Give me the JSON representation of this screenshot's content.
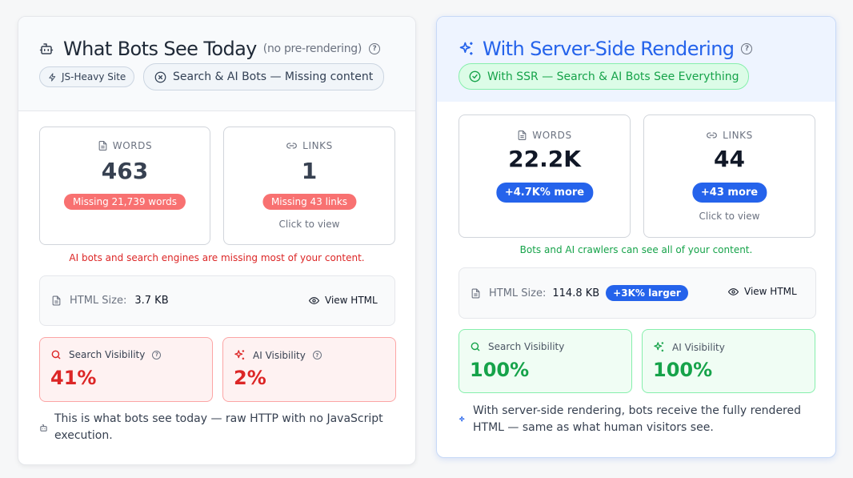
{
  "left": {
    "title": "What Bots See Today",
    "subtitle": "(no pre-rendering)",
    "chip1": "JS-Heavy Site",
    "chip2": "Search & AI Bots — Missing content",
    "words": {
      "label": "WORDS",
      "value": "463",
      "badge": "Missing 21,739 words"
    },
    "links": {
      "label": "LINKS",
      "value": "1",
      "badge": "Missing 43 links",
      "click": "Click to view"
    },
    "note": "AI bots and search engines are missing most of your content.",
    "html_size": {
      "label": "HTML Size:",
      "value": "3.7 KB",
      "button": "View HTML"
    },
    "search_vis": {
      "label": "Search Visibility",
      "value": "41%"
    },
    "ai_vis": {
      "label": "AI Visibility",
      "value": "2%"
    },
    "footer": "This is what bots see today — raw HTTP with no JavaScript execution."
  },
  "right": {
    "title": "With Server-Side Rendering",
    "chip": "With SSR — Search & AI Bots See Everything",
    "words": {
      "label": "WORDS",
      "value": "22.2K",
      "badge": "+4.7K% more"
    },
    "links": {
      "label": "LINKS",
      "value": "44",
      "badge": "+43 more",
      "click": "Click to view"
    },
    "note": "Bots and AI crawlers can see all of your content.",
    "html_size": {
      "label": "HTML Size:",
      "value": "114.8 KB",
      "badge": "+3K% larger",
      "button": "View HTML"
    },
    "search_vis": {
      "label": "Search Visibility",
      "value": "100%"
    },
    "ai_vis": {
      "label": "AI Visibility",
      "value": "100%"
    },
    "footer": "With server-side rendering, bots receive the fully rendered HTML — same as what human visitors see."
  },
  "colors": {
    "red": "#dc2626",
    "red_badge": "#f87171",
    "blue": "#2563eb",
    "green": "#16a34a",
    "green_bg": "#f0fdf4"
  }
}
